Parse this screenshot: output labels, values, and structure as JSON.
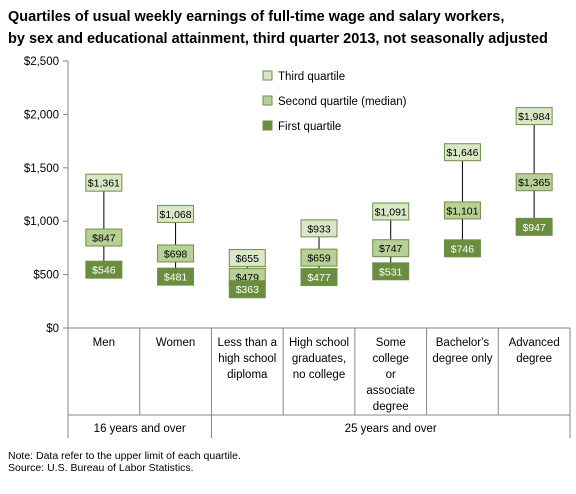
{
  "title_line1": "Quartiles of usual weekly earnings of full-time wage and salary workers,",
  "title_line2": "by sex and educational attainment, third quarter 2013, not seasonally adjusted",
  "note": "Note: Data refer to the upper limit of each quartile.",
  "source": "Source: U.S. Bureau of Labor Statistics.",
  "colors": {
    "third": "#d9e7c7",
    "second": "#b8d096",
    "first": "#6b8e3e",
    "border": "#6f8f4a"
  },
  "chart_data": {
    "type": "box",
    "categories": [
      [
        "Men"
      ],
      [
        "Women"
      ],
      [
        "Less than a",
        "high school",
        "diploma"
      ],
      [
        "High school",
        "graduates,",
        "no college"
      ],
      [
        "Some",
        "college",
        "or",
        "associate",
        "degree"
      ],
      [
        "Bachelor's",
        "degree only"
      ],
      [
        "Advanced",
        "degree"
      ]
    ],
    "groups": [
      {
        "label": "16 years and over",
        "span": [
          0,
          1
        ]
      },
      {
        "label": "25 years and over",
        "span": [
          2,
          6
        ]
      }
    ],
    "series": [
      {
        "name": "Third quartile",
        "values": [
          1361,
          1068,
          655,
          933,
          1091,
          1646,
          1984
        ],
        "labels": [
          "$1,361",
          "$1,068",
          "$655",
          "$933",
          "$1,091",
          "$1,646",
          "$1,984"
        ]
      },
      {
        "name": "Second quartile (median)",
        "values": [
          847,
          698,
          479,
          659,
          747,
          1101,
          1365
        ],
        "labels": [
          "$847",
          "$698",
          "$479",
          "$659",
          "$747",
          "$1,101",
          "$1,365"
        ]
      },
      {
        "name": "First quartile",
        "values": [
          546,
          481,
          363,
          477,
          531,
          746,
          947
        ],
        "labels": [
          "$546",
          "$481",
          "$363",
          "$477",
          "$531",
          "$746",
          "$947"
        ]
      }
    ],
    "ylim": [
      0,
      2500
    ],
    "yticks": [
      0,
      500,
      1000,
      1500,
      2000,
      2500
    ],
    "ytick_labels": [
      "$0",
      "$500",
      "$1,000",
      "$1,500",
      "$2,000",
      "$2,500"
    ],
    "grid": false,
    "legend_position": "top-center"
  }
}
